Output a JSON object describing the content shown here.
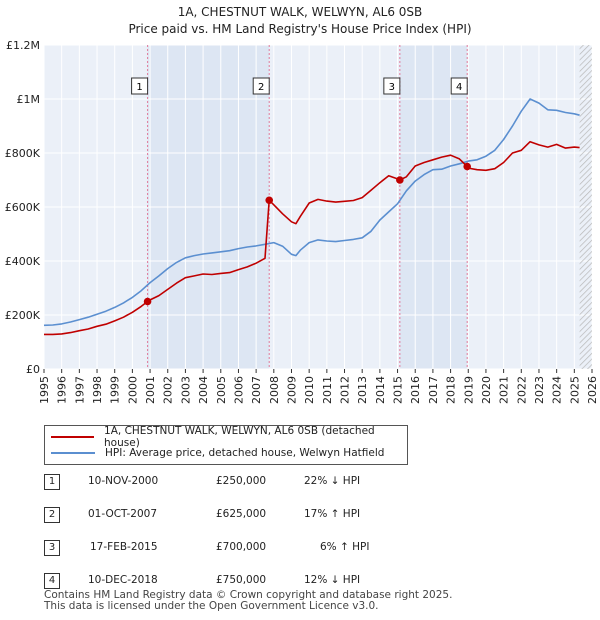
{
  "chart_data": {
    "type": "line",
    "title": "1A, CHESTNUT WALK, WELWYN, AL6 0SB",
    "subtitle": "Price paid vs. HM Land Registry's House Price Index (HPI)",
    "xlabel": "",
    "ylabel": "",
    "xlim": [
      1995,
      2026
    ],
    "ylim": [
      0,
      1200000
    ],
    "grid": true,
    "y_ticks": [
      {
        "value": 0,
        "label": "£0"
      },
      {
        "value": 200000,
        "label": "£200K"
      },
      {
        "value": 400000,
        "label": "£400K"
      },
      {
        "value": 600000,
        "label": "£600K"
      },
      {
        "value": 800000,
        "label": "£800K"
      },
      {
        "value": 1000000,
        "label": "£1M"
      },
      {
        "value": 1200000,
        "label": "£1.2M"
      }
    ],
    "x_ticks": [
      "1995",
      "1996",
      "1997",
      "1998",
      "1999",
      "2000",
      "2001",
      "2002",
      "2003",
      "2004",
      "2005",
      "2006",
      "2007",
      "2008",
      "2009",
      "2010",
      "2011",
      "2012",
      "2013",
      "2014",
      "2015",
      "2016",
      "2017",
      "2018",
      "2019",
      "2020",
      "2021",
      "2022",
      "2023",
      "2024",
      "2025",
      "2026"
    ],
    "series": [
      {
        "name": "1A, CHESTNUT WALK, WELWYN, AL6 0SB (detached house)",
        "color": "#c00000",
        "x": [
          1995.0,
          1995.5,
          1996.0,
          1996.5,
          1997.0,
          1997.5,
          1998.0,
          1998.5,
          1999.0,
          1999.5,
          2000.0,
          2000.5,
          2000.86,
          2001.0,
          2001.5,
          2002.0,
          2002.5,
          2003.0,
          2003.5,
          2004.0,
          2004.5,
          2005.0,
          2005.5,
          2006.0,
          2006.5,
          2007.0,
          2007.5,
          2007.74,
          2008.0,
          2008.5,
          2009.0,
          2009.25,
          2009.5,
          2010.0,
          2010.5,
          2011.0,
          2011.5,
          2012.0,
          2012.5,
          2013.0,
          2013.5,
          2014.0,
          2014.5,
          2015.0,
          2015.13,
          2015.5,
          2016.0,
          2016.5,
          2017.0,
          2017.5,
          2018.0,
          2018.5,
          2018.94,
          2019.0,
          2019.5,
          2020.0,
          2020.5,
          2021.0,
          2021.5,
          2022.0,
          2022.5,
          2023.0,
          2023.5,
          2024.0,
          2024.5,
          2025.0,
          2025.3
        ],
        "y": [
          128000,
          128000,
          130000,
          135000,
          142000,
          148000,
          158000,
          166000,
          178000,
          192000,
          210000,
          232000,
          250000,
          256000,
          272000,
          295000,
          318000,
          338000,
          345000,
          352000,
          350000,
          354000,
          357000,
          368000,
          378000,
          392000,
          410000,
          625000,
          608000,
          575000,
          545000,
          538000,
          565000,
          615000,
          628000,
          622000,
          618000,
          621000,
          624000,
          635000,
          662000,
          690000,
          716000,
          704000,
          700000,
          712000,
          752000,
          765000,
          775000,
          785000,
          792000,
          778000,
          750000,
          744000,
          738000,
          736000,
          742000,
          765000,
          800000,
          810000,
          842000,
          830000,
          822000,
          832000,
          818000,
          822000,
          820000
        ]
      },
      {
        "name": "HPI: Average price, detached house, Welwyn Hatfield",
        "color": "#5b8fd0",
        "x": [
          1995.0,
          1995.5,
          1996.0,
          1996.5,
          1997.0,
          1997.5,
          1998.0,
          1998.5,
          1999.0,
          1999.5,
          2000.0,
          2000.5,
          2001.0,
          2001.5,
          2002.0,
          2002.5,
          2003.0,
          2003.5,
          2004.0,
          2004.5,
          2005.0,
          2005.5,
          2006.0,
          2006.5,
          2007.0,
          2007.5,
          2008.0,
          2008.5,
          2009.0,
          2009.25,
          2009.5,
          2010.0,
          2010.5,
          2011.0,
          2011.5,
          2012.0,
          2012.5,
          2013.0,
          2013.5,
          2014.0,
          2014.5,
          2015.0,
          2015.5,
          2016.0,
          2016.5,
          2017.0,
          2017.5,
          2018.0,
          2018.5,
          2019.0,
          2019.5,
          2020.0,
          2020.5,
          2021.0,
          2021.5,
          2022.0,
          2022.5,
          2023.0,
          2023.5,
          2024.0,
          2024.5,
          2025.0,
          2025.3
        ],
        "y": [
          162000,
          163000,
          167000,
          174000,
          183000,
          192000,
          203000,
          214000,
          228000,
          245000,
          265000,
          290000,
          320000,
          345000,
          372000,
          395000,
          412000,
          420000,
          426000,
          430000,
          434000,
          438000,
          446000,
          452000,
          456000,
          462000,
          468000,
          455000,
          425000,
          420000,
          440000,
          468000,
          478000,
          474000,
          472000,
          476000,
          480000,
          486000,
          510000,
          552000,
          582000,
          612000,
          660000,
          696000,
          720000,
          738000,
          740000,
          752000,
          760000,
          770000,
          775000,
          788000,
          810000,
          850000,
          900000,
          955000,
          1000000,
          985000,
          960000,
          958000,
          950000,
          945000,
          940000
        ]
      }
    ],
    "sales": [
      {
        "num": "1",
        "date": "10-NOV-2000",
        "price": "£250,000",
        "pct": "22% ↓ HPI",
        "year": 2000.86,
        "value": 250000
      },
      {
        "num": "2",
        "date": "01-OCT-2007",
        "price": "£625,000",
        "pct": "17% ↑ HPI",
        "year": 2007.74,
        "value": 625000
      },
      {
        "num": "3",
        "date": "17-FEB-2015",
        "price": "£700,000",
        "pct": "6% ↑ HPI",
        "year": 2015.13,
        "value": 700000
      },
      {
        "num": "4",
        "date": "10-DEC-2018",
        "price": "£750,000",
        "pct": "12% ↓ HPI",
        "year": 2018.94,
        "value": 750000
      }
    ],
    "forecast_start": 2025.3
  },
  "legend": {
    "property_label": "1A, CHESTNUT WALK, WELWYN, AL6 0SB (detached house)",
    "hpi_label": "HPI: Average price, detached house, Welwyn Hatfield"
  },
  "footer": {
    "line1": "Contains HM Land Registry data © Crown copyright and database right 2025.",
    "line2": "This data is licensed under the Open Government Licence v3.0."
  },
  "colors": {
    "property": "#c00000",
    "hpi": "#5b8fd0",
    "plot_bg": "#ebf0f8",
    "shade": "#dde6f3",
    "marker_line": "#e07a9a"
  }
}
